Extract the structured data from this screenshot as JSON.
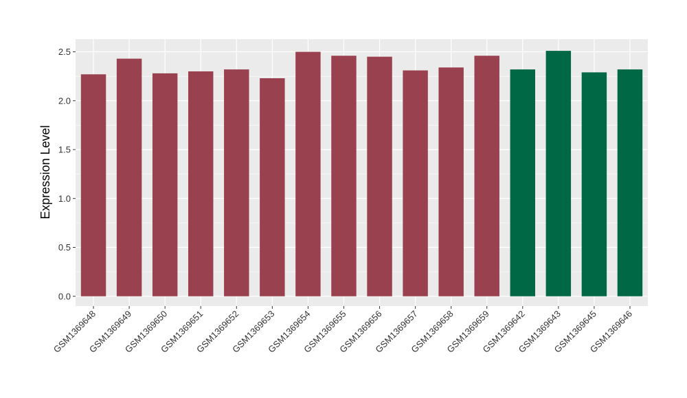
{
  "chart_data": {
    "type": "bar",
    "ylabel": "Expression Level",
    "xlabel": "",
    "title": "",
    "ylim": [
      -0.1,
      2.63
    ],
    "yticks": [
      0.0,
      0.5,
      1.0,
      1.5,
      2.0,
      2.5
    ],
    "ytick_labels": [
      "0.0",
      "0.5",
      "1.0",
      "1.5",
      "2.0",
      "2.5"
    ],
    "grid": true,
    "categories": [
      "GSM1369648",
      "GSM1369649",
      "GSM1369650",
      "GSM1369651",
      "GSM1369652",
      "GSM1369653",
      "GSM1369654",
      "GSM1369655",
      "GSM1369656",
      "GSM1369657",
      "GSM1369658",
      "GSM1369659",
      "GSM1369642",
      "GSM1369643",
      "GSM1369645",
      "GSM1369646"
    ],
    "values": [
      2.27,
      2.43,
      2.28,
      2.3,
      2.32,
      2.23,
      2.5,
      2.46,
      2.45,
      2.31,
      2.34,
      2.46,
      2.32,
      2.51,
      2.29,
      2.32
    ],
    "bar_colors": [
      "#99414f",
      "#99414f",
      "#99414f",
      "#99414f",
      "#99414f",
      "#99414f",
      "#99414f",
      "#99414f",
      "#99414f",
      "#99414f",
      "#99414f",
      "#99414f",
      "#006845",
      "#006845",
      "#006845",
      "#006845"
    ],
    "panel_background": "#ebebeb",
    "grid_color": "#ffffff"
  }
}
